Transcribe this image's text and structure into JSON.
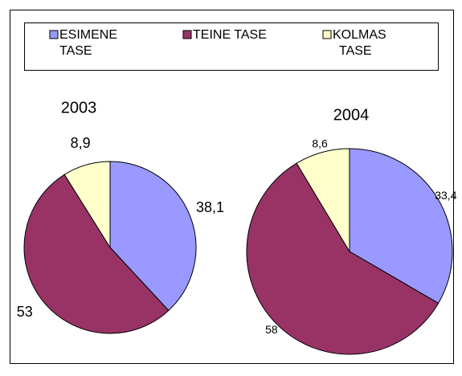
{
  "chart_data": [
    {
      "type": "pie",
      "title": "2003",
      "categories": [
        "ESIMENE TASE",
        "TEINE TASE",
        "KOLMAS TASE"
      ],
      "values": [
        38.1,
        53,
        8.9
      ],
      "value_labels": [
        "38,1",
        "53",
        "8,9"
      ],
      "colors": [
        "#9999ff",
        "#993366",
        "#ffffcc"
      ],
      "legend": "top"
    },
    {
      "type": "pie",
      "title": "2004",
      "categories": [
        "ESIMENE TASE",
        "TEINE TASE",
        "KOLMAS TASE"
      ],
      "values": [
        33.4,
        58,
        8.6
      ],
      "value_labels": [
        "33,4",
        "58",
        "8,6"
      ],
      "colors": [
        "#9999ff",
        "#993366",
        "#ffffcc"
      ]
    }
  ]
}
